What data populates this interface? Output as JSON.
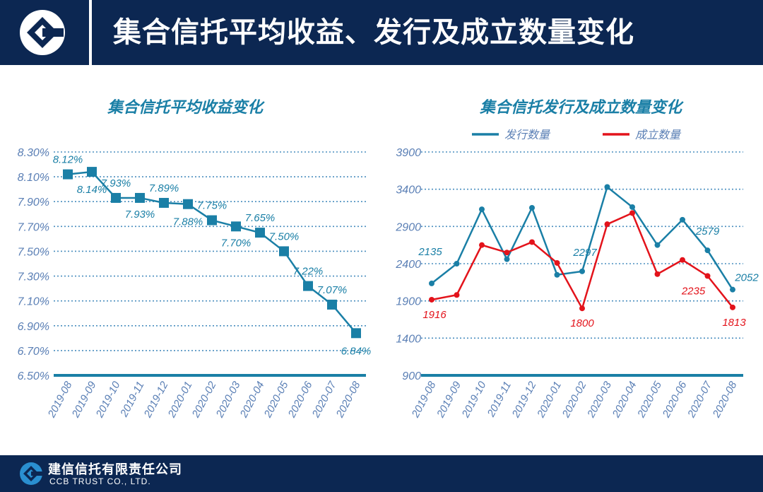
{
  "header": {
    "title": "集合信托平均收益、发行及成立数量变化"
  },
  "footer": {
    "company_cn": "建信信托有限责任公司",
    "company_en": "CCB TRUST CO., LTD."
  },
  "colors": {
    "navy": "#0c2752",
    "teal": "#1a7fa6",
    "red": "#e3131b",
    "axis_text": "#5a7fb5",
    "grid": "#4b8fbf"
  },
  "icons": {
    "header_logo": "ccb-logo-icon",
    "footer_logo": "ccb-logo-icon"
  },
  "chart_data": [
    {
      "type": "line",
      "title": "集合信托平均收益变化",
      "xlabel": "",
      "ylabel": "",
      "categories": [
        "2019-08",
        "2019-09",
        "2019-10",
        "2019-11",
        "2019-12",
        "2020-01",
        "2020-02",
        "2020-03",
        "2020-04",
        "2020-05",
        "2020-06",
        "2020-07",
        "2020-08"
      ],
      "ylim": [
        6.5,
        8.3
      ],
      "yticks": [
        "8.30%",
        "8.10%",
        "7.90%",
        "7.70%",
        "7.50%",
        "7.30%",
        "7.10%",
        "6.90%",
        "6.70%",
        "6.50%"
      ],
      "grid": true,
      "series": [
        {
          "values": [
            8.12,
            8.14,
            7.93,
            7.93,
            7.89,
            7.88,
            7.75,
            7.7,
            7.65,
            7.5,
            7.22,
            7.07,
            6.84
          ],
          "labels": [
            "8.12%",
            "8.14%",
            "7.93%",
            "7.93%",
            "7.89%",
            "7.88%",
            "7.75%",
            "7.70%",
            "7.65%",
            "7.50%",
            "7.22%",
            "7.07%",
            "6.84%"
          ]
        }
      ]
    },
    {
      "type": "line",
      "title": "集合信托发行及成立数量变化",
      "xlabel": "",
      "ylabel": "",
      "categories": [
        "2019-08",
        "2019-09",
        "2019-10",
        "2019-11",
        "2019-12",
        "2020-01",
        "2020-02",
        "2020-03",
        "2020-04",
        "2020-05",
        "2020-06",
        "2020-07",
        "2020-08"
      ],
      "ylim": [
        900,
        3900
      ],
      "yticks": [
        "3900",
        "3400",
        "2900",
        "2400",
        "1900",
        "1400",
        "900"
      ],
      "grid": true,
      "legend": "top",
      "series": [
        {
          "name": "发行数量",
          "values": [
            2135,
            2400,
            3130,
            2460,
            3150,
            2250,
            2297,
            3430,
            3160,
            2650,
            2990,
            2579,
            2052
          ],
          "labels": [
            "2135",
            "",
            "",
            "",
            "",
            "",
            "2297",
            "",
            "",
            "",
            "",
            "2579",
            "2052"
          ]
        },
        {
          "name": "成立数量",
          "values": [
            1916,
            1980,
            2650,
            2550,
            2690,
            2410,
            1800,
            2930,
            3080,
            2260,
            2450,
            2235,
            1813
          ],
          "labels": [
            "1916",
            "",
            "",
            "",
            "",
            "",
            "1800",
            "",
            "",
            "",
            "",
            "2235",
            "1813"
          ]
        }
      ]
    }
  ]
}
